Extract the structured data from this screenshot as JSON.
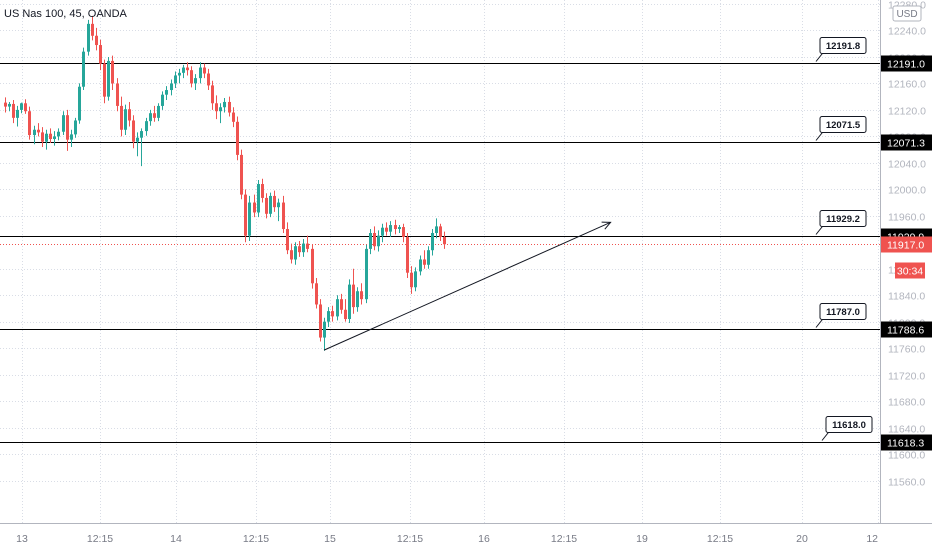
{
  "header": {
    "symbol_label": "US Nas 100, 45, OANDA"
  },
  "currency_badge": "USD",
  "colors": {
    "bull": "#26a69a",
    "bear": "#ef5350",
    "grid": "#d9dde6",
    "level_line": "#000000",
    "last_price_bg": "#ef5350"
  },
  "chart_data": {
    "type": "candlestick",
    "ylim": [
      11520,
      12280
    ],
    "y_ticks": [
      {
        "value": 12280,
        "label": "12280.0"
      },
      {
        "value": 12240,
        "label": "12240.0"
      },
      {
        "value": 12200,
        "label": "12200.0"
      },
      {
        "value": 12160,
        "label": "12160.0"
      },
      {
        "value": 12120,
        "label": "12120.0"
      },
      {
        "value": 12080,
        "label": "12080.0"
      },
      {
        "value": 12040,
        "label": "12040.0"
      },
      {
        "value": 12000,
        "label": "12000.0"
      },
      {
        "value": 11960,
        "label": "11960.0"
      },
      {
        "value": 11880,
        "label": "11880.0"
      },
      {
        "value": 11840,
        "label": "11840.0"
      },
      {
        "value": 11800,
        "label": "11800.0"
      },
      {
        "value": 11760,
        "label": "11760.0"
      },
      {
        "value": 11720,
        "label": "11720.0"
      },
      {
        "value": 11680,
        "label": "11680.0"
      },
      {
        "value": 11640,
        "label": "11640.0"
      },
      {
        "value": 11600,
        "label": "11600.0"
      },
      {
        "value": 11560,
        "label": "11560.0"
      }
    ],
    "x_ticks": [
      "13",
      "12:15",
      "14",
      "12:15",
      "15",
      "12:15",
      "16",
      "12:15",
      "19",
      "12:15",
      "20",
      "12"
    ],
    "candles": [
      [
        12131,
        12139,
        12116,
        12125
      ],
      [
        12125,
        12132,
        12118,
        12129
      ],
      [
        12129,
        12135,
        12100,
        12108
      ],
      [
        12108,
        12126,
        12095,
        12120
      ],
      [
        12120,
        12131,
        12115,
        12130
      ],
      [
        12130,
        12136,
        12114,
        12118
      ],
      [
        12118,
        12125,
        12075,
        12082
      ],
      [
        12082,
        12096,
        12068,
        12090
      ],
      [
        12090,
        12100,
        12080,
        12086
      ],
      [
        12086,
        12094,
        12064,
        12072
      ],
      [
        12072,
        12090,
        12060,
        12084
      ],
      [
        12084,
        12092,
        12070,
        12076
      ],
      [
        12076,
        12088,
        12066,
        12080
      ],
      [
        12080,
        12092,
        12074,
        12087
      ],
      [
        12087,
        12118,
        12082,
        12112
      ],
      [
        12112,
        12120,
        12058,
        12075
      ],
      [
        12075,
        12090,
        12064,
        12083
      ],
      [
        12083,
        12108,
        12078,
        12104
      ],
      [
        12104,
        12160,
        12099,
        12155
      ],
      [
        12155,
        12214,
        12150,
        12208
      ],
      [
        12208,
        12256,
        12202,
        12250
      ],
      [
        12250,
        12262,
        12225,
        12232
      ],
      [
        12232,
        12244,
        12210,
        12218
      ],
      [
        12218,
        12226,
        12180,
        12190
      ],
      [
        12190,
        12196,
        12130,
        12140
      ],
      [
        12140,
        12200,
        12134,
        12194
      ],
      [
        12194,
        12202,
        12150,
        12160
      ],
      [
        12160,
        12168,
        12118,
        12126
      ],
      [
        12126,
        12140,
        12080,
        12090
      ],
      [
        12090,
        12128,
        12082,
        12121
      ],
      [
        12121,
        12132,
        12095,
        12104
      ],
      [
        12104,
        12112,
        12062,
        12072
      ],
      [
        12072,
        12086,
        12050,
        12078
      ],
      [
        12078,
        12092,
        12035,
        12088
      ],
      [
        12088,
        12108,
        12081,
        12103
      ],
      [
        12103,
        12120,
        12096,
        12115
      ],
      [
        12115,
        12126,
        12102,
        12108
      ],
      [
        12108,
        12130,
        12103,
        12126
      ],
      [
        12126,
        12148,
        12120,
        12143
      ],
      [
        12143,
        12156,
        12135,
        12150
      ],
      [
        12150,
        12166,
        12142,
        12160
      ],
      [
        12160,
        12178,
        12153,
        12172
      ],
      [
        12172,
        12182,
        12160,
        12176
      ],
      [
        12176,
        12188,
        12168,
        12184
      ],
      [
        12184,
        12192,
        12172,
        12180
      ],
      [
        12180,
        12186,
        12154,
        12160
      ],
      [
        12160,
        12174,
        12150,
        12168
      ],
      [
        12168,
        12192,
        12160,
        12184
      ],
      [
        12184,
        12190,
        12168,
        12175
      ],
      [
        12175,
        12182,
        12150,
        12157
      ],
      [
        12157,
        12164,
        12120,
        12130
      ],
      [
        12130,
        12142,
        12106,
        12118
      ],
      [
        12118,
        12130,
        12100,
        12124
      ],
      [
        12124,
        12138,
        12116,
        12132
      ],
      [
        12132,
        12140,
        12110,
        12116
      ],
      [
        12116,
        12124,
        12094,
        12102
      ],
      [
        12102,
        12110,
        12044,
        12052
      ],
      [
        12052,
        12060,
        11985,
        11992
      ],
      [
        11992,
        12000,
        11920,
        11930
      ],
      [
        11930,
        11990,
        11922,
        11980
      ],
      [
        11980,
        11992,
        11958,
        11965
      ],
      [
        11965,
        12014,
        11958,
        12008
      ],
      [
        12008,
        12016,
        11980,
        11987
      ],
      [
        11987,
        11994,
        11956,
        11963
      ],
      [
        11963,
        11995,
        11958,
        11990
      ],
      [
        11990,
        11998,
        11966,
        11973
      ],
      [
        11973,
        11986,
        11952,
        11980
      ],
      [
        11980,
        11990,
        11934,
        11940
      ],
      [
        11940,
        11950,
        11902,
        11908
      ],
      [
        11908,
        11918,
        11888,
        11894
      ],
      [
        11894,
        11920,
        11886,
        11914
      ],
      [
        11914,
        11922,
        11898,
        11905
      ],
      [
        11905,
        11925,
        11898,
        11918
      ],
      [
        11918,
        11930,
        11905,
        11910
      ],
      [
        11910,
        11916,
        11850,
        11858
      ],
      [
        11858,
        11866,
        11820,
        11826
      ],
      [
        11826,
        11834,
        11770,
        11776
      ],
      [
        11776,
        11806,
        11756,
        11800
      ],
      [
        11800,
        11822,
        11792,
        11816
      ],
      [
        11816,
        11824,
        11800,
        11808
      ],
      [
        11808,
        11840,
        11802,
        11834
      ],
      [
        11834,
        11842,
        11812,
        11818
      ],
      [
        11818,
        11834,
        11800,
        11804
      ],
      [
        11804,
        11864,
        11798,
        11856
      ],
      [
        11856,
        11880,
        11812,
        11822
      ],
      [
        11822,
        11852,
        11815,
        11846
      ],
      [
        11846,
        11858,
        11826,
        11834
      ],
      [
        11834,
        11916,
        11828,
        11910
      ],
      [
        11910,
        11940,
        11902,
        11934
      ],
      [
        11934,
        11944,
        11908,
        11914
      ],
      [
        11914,
        11938,
        11906,
        11930
      ],
      [
        11930,
        11948,
        11920,
        11942
      ],
      [
        11942,
        11950,
        11930,
        11936
      ],
      [
        11936,
        11952,
        11928,
        11946
      ],
      [
        11946,
        11954,
        11932,
        11940
      ],
      [
        11940,
        11946,
        11934,
        11943
      ],
      [
        11943,
        11948,
        11920,
        11928
      ],
      [
        11928,
        11934,
        11866,
        11874
      ],
      [
        11874,
        11884,
        11842,
        11852
      ],
      [
        11852,
        11882,
        11846,
        11876
      ],
      [
        11876,
        11900,
        11870,
        11894
      ],
      [
        11894,
        11908,
        11880,
        11886
      ],
      [
        11886,
        11914,
        11880,
        11908
      ],
      [
        11908,
        11940,
        11900,
        11934
      ],
      [
        11934,
        11956,
        11926,
        11944
      ],
      [
        11944,
        11948,
        11922,
        11928
      ],
      [
        11928,
        11936,
        11910,
        11917
      ]
    ],
    "level_lines": [
      {
        "value": 12191.0,
        "axis_label": "12191.0",
        "callout": "12191.8"
      },
      {
        "value": 12071.3,
        "axis_label": "12071.3",
        "callout": "12071.5"
      },
      {
        "value": 11929.9,
        "axis_label": "11929.9",
        "callout": "11929.2"
      },
      {
        "value": 11788.6,
        "axis_label": "11788.6",
        "callout": "11787.0"
      },
      {
        "value": 11618.3,
        "axis_label": "11618.3",
        "callout": "11618.0"
      }
    ],
    "last_price": {
      "value": 11917.0,
      "label": "11917.0",
      "countdown": "30:34"
    },
    "trendline": {
      "from_candle": 77,
      "from_value": 11757,
      "to_candle": 134,
      "to_value": 11938
    }
  }
}
